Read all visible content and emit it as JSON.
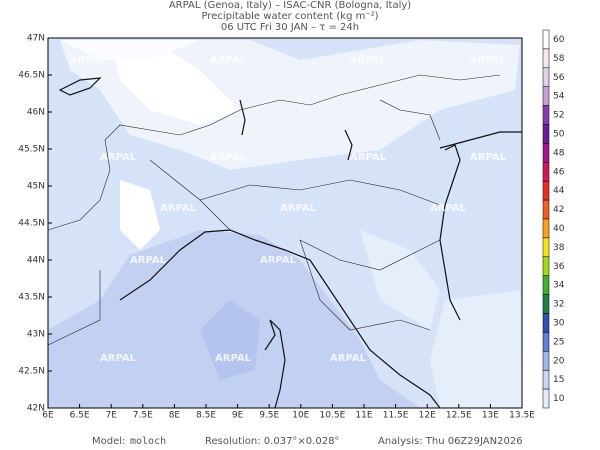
{
  "header": {
    "line1": "ARPAL (Genoa, Italy)  –  ISAC-CNR (Bologna, Italy)",
    "line2": "Precipitable water content (kg m⁻²)",
    "line3": "06 UTC Fri 30 JAN  –  τ = 24h"
  },
  "map": {
    "lat_labels": [
      "47N",
      "46.5N",
      "46N",
      "45.5N",
      "45N",
      "44.5N",
      "44N",
      "43.5N",
      "43N",
      "42.5N",
      "42N"
    ],
    "lon_labels": [
      "6E",
      "6.5E",
      "7E",
      "7.5E",
      "8E",
      "8.5E",
      "9E",
      "9.5E",
      "10E",
      "10.5E",
      "11E",
      "11.5E",
      "12E",
      "12.5E",
      "13E",
      "13.5E"
    ],
    "watermark": "ARPAL"
  },
  "colorbar": {
    "labels": [
      60,
      58,
      56,
      54,
      52,
      50,
      48,
      46,
      44,
      42,
      40,
      38,
      36,
      34,
      32,
      30,
      25,
      20,
      15,
      10
    ]
  },
  "footer": {
    "model_label": "Model:",
    "model": "moloch",
    "resolution": "Resolution: 0.037°×0.028°",
    "analysis": "Analysis: Thu 06Z29JAN2026"
  }
}
